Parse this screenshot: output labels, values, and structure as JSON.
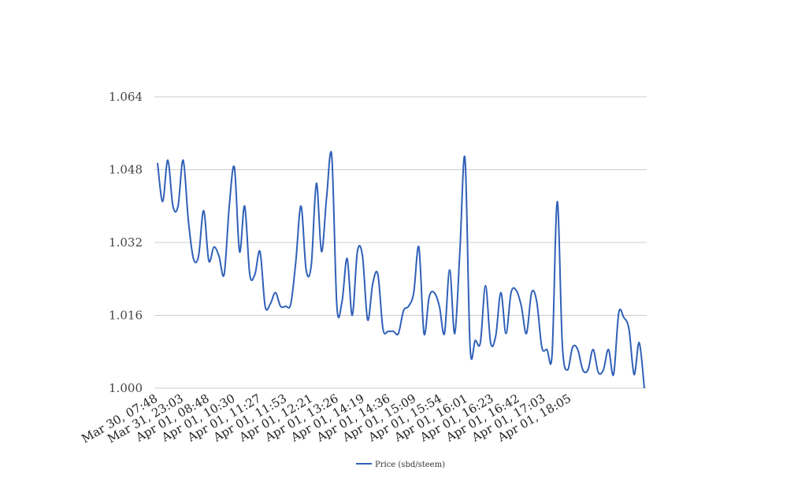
{
  "chart_data": {
    "type": "line",
    "title": "",
    "xlabel": "",
    "ylabel": "",
    "ylim": [
      1.0,
      1.064
    ],
    "y_ticks": [
      "1.000",
      "1.016",
      "1.032",
      "1.048",
      "1.064"
    ],
    "y_tick_values": [
      1.0,
      1.016,
      1.032,
      1.048,
      1.064
    ],
    "x_tick_labels": [
      "Mar 30, 07:48",
      "Mar 31, 23:03",
      "Apr 01, 08:48",
      "Apr 01, 10:30",
      "Apr 01, 11:27",
      "Apr 01, 11:53",
      "Apr 01, 12:21",
      "Apr 01, 13:26",
      "Apr 01, 14:19",
      "Apr 01, 14:36",
      "Apr 01, 15:09",
      "Apr 01, 15:54",
      "Apr 01, 16:01",
      "Apr 01, 16:23",
      "Apr 01, 16:42",
      "Apr 01, 17:03",
      "Apr 01, 18:05"
    ],
    "grid": true,
    "legend_position": "bottom",
    "series": [
      {
        "name": "Price (sbd/steem)",
        "color": "#3060b8",
        "values": [
          1.0495,
          1.041,
          1.0501,
          1.04,
          1.04,
          1.0501,
          1.037,
          1.0285,
          1.029,
          1.039,
          1.028,
          1.031,
          1.029,
          1.025,
          1.04,
          1.0485,
          1.03,
          1.04,
          1.025,
          1.025,
          1.03,
          1.018,
          1.0185,
          1.021,
          1.018,
          1.018,
          1.0185,
          1.028,
          1.04,
          1.026,
          1.027,
          1.045,
          1.03,
          1.042,
          1.051,
          1.018,
          1.019,
          1.0285,
          1.016,
          1.03,
          1.029,
          1.015,
          1.023,
          1.025,
          1.013,
          1.0125,
          1.0125,
          1.012,
          1.017,
          1.018,
          1.021,
          1.031,
          1.012,
          1.02,
          1.021,
          1.018,
          1.012,
          1.026,
          1.012,
          1.03,
          1.0505,
          1.009,
          1.0105,
          1.01,
          1.0225,
          1.01,
          1.0115,
          1.021,
          1.012,
          1.021,
          1.0215,
          1.018,
          1.012,
          1.021,
          1.019,
          1.009,
          1.0085,
          1.0075,
          1.041,
          1.0095,
          1.004,
          1.009,
          1.0085,
          1.004,
          1.004,
          1.0085,
          1.0035,
          1.004,
          1.0085,
          1.003,
          1.0165,
          1.0155,
          1.013,
          1.003,
          1.01,
          1.0
        ]
      }
    ]
  }
}
